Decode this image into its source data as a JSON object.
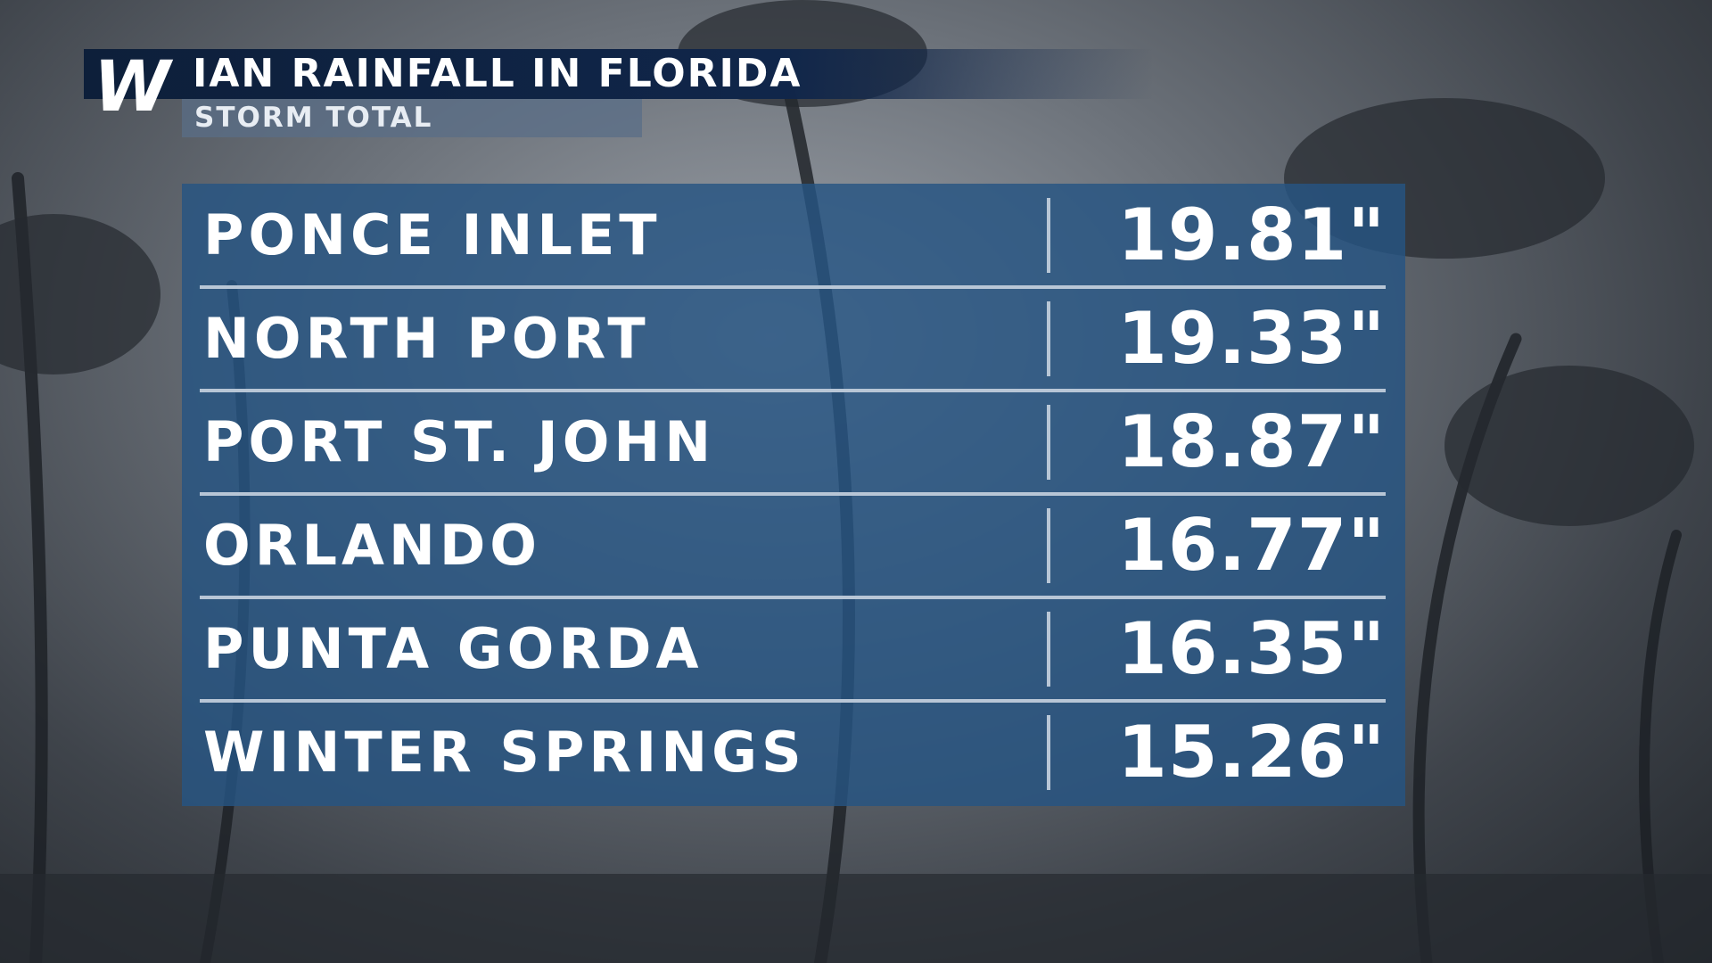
{
  "header": {
    "logo": "W",
    "title": "IAN RAINFALL IN FLORIDA",
    "subtitle": "STORM TOTAL"
  },
  "table": {
    "rows": [
      [
        "PONCE INLET",
        "19.81\""
      ],
      [
        "NORTH PORT",
        "19.33\""
      ],
      [
        "PORT ST. JOHN",
        "18.87\""
      ],
      [
        "ORLANDO",
        "16.77\""
      ],
      [
        "PUNTA GORDA",
        "16.35\""
      ],
      [
        "WINTER SPRINGS",
        "15.26\""
      ]
    ]
  }
}
